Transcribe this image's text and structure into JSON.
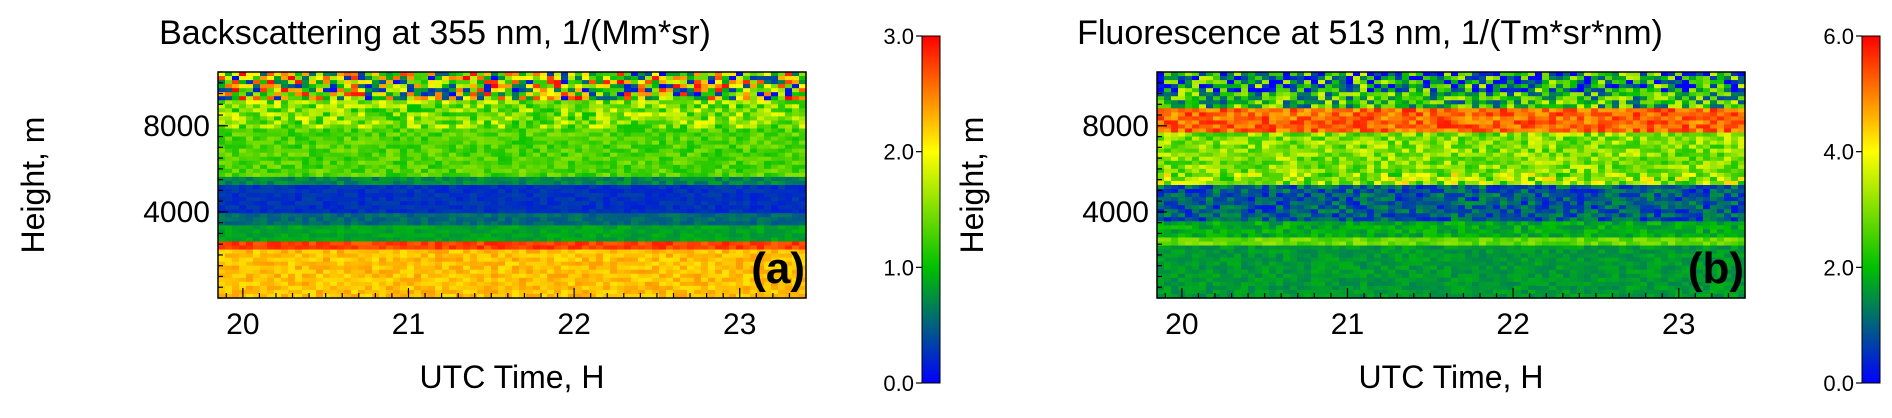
{
  "chart_data": [
    {
      "type": "heatmap",
      "title": "Backscattering at 355 nm, 1/(Mm*sr)",
      "xlabel": "UTC Time, H",
      "ylabel": "Height, m",
      "panel_label": "(a)",
      "xlim": [
        19.85,
        23.4
      ],
      "ylim": [
        0,
        10500
      ],
      "x_ticks": [
        "20",
        "21",
        "22",
        "23"
      ],
      "y_ticks": [
        "4000",
        "8000"
      ],
      "colorbar": {
        "range": [
          0.0,
          3.0
        ],
        "ticks": [
          "0.0",
          "1.0",
          "2.0",
          "3.0"
        ],
        "colormap": [
          "#0000ff",
          "#00c000",
          "#ffff00",
          "#ff0000"
        ]
      },
      "layers": [
        {
          "from_m": 0,
          "to_m": 2300,
          "value": 2.25,
          "noise": 0.15
        },
        {
          "from_m": 2300,
          "to_m": 2600,
          "value": 2.75,
          "noise": 0.15
        },
        {
          "from_m": 2600,
          "to_m": 3300,
          "value": 0.85,
          "noise": 0.1
        },
        {
          "from_m": 3300,
          "to_m": 4000,
          "value": 0.55,
          "noise": 0.12
        },
        {
          "from_m": 4000,
          "to_m": 5200,
          "value": 0.25,
          "noise": 0.1
        },
        {
          "from_m": 5200,
          "to_m": 5700,
          "value": 0.7,
          "noise": 0.15
        },
        {
          "from_m": 5700,
          "to_m": 7800,
          "value": 1.3,
          "noise": 0.25
        },
        {
          "from_m": 7800,
          "to_m": 9200,
          "value": 1.5,
          "noise": 0.5
        },
        {
          "from_m": 9200,
          "to_m": 10500,
          "value": 1.5,
          "noise": 1.5
        }
      ]
    },
    {
      "type": "heatmap",
      "title": "Fluorescence at 513 nm, 1/(Tm*sr*nm)",
      "xlabel": "UTC Time, H",
      "ylabel": "Height, m",
      "panel_label": "(b)",
      "xlim": [
        19.85,
        23.4
      ],
      "ylim": [
        0,
        10500
      ],
      "x_ticks": [
        "20",
        "21",
        "22",
        "23"
      ],
      "y_ticks": [
        "4000",
        "8000"
      ],
      "colorbar": {
        "range": [
          0.0,
          6.0
        ],
        "ticks": [
          "0.0",
          "2.0",
          "4.0",
          "6.0"
        ],
        "colormap": [
          "#0000ff",
          "#00c000",
          "#ffff00",
          "#ff0000"
        ]
      },
      "layers": [
        {
          "from_m": 0,
          "to_m": 2500,
          "value": 1.6,
          "noise": 0.25
        },
        {
          "from_m": 2500,
          "to_m": 2900,
          "value": 2.8,
          "noise": 0.4
        },
        {
          "from_m": 2900,
          "to_m": 3500,
          "value": 1.8,
          "noise": 0.4
        },
        {
          "from_m": 3500,
          "to_m": 5200,
          "value": 0.9,
          "noise": 0.7
        },
        {
          "from_m": 5200,
          "to_m": 5800,
          "value": 3.2,
          "noise": 1.2
        },
        {
          "from_m": 5800,
          "to_m": 7600,
          "value": 3.0,
          "noise": 0.8
        },
        {
          "from_m": 7600,
          "to_m": 8800,
          "value": 5.2,
          "noise": 0.6
        },
        {
          "from_m": 8800,
          "to_m": 9600,
          "value": 2.2,
          "noise": 1.5
        },
        {
          "from_m": 9600,
          "to_m": 10500,
          "value": 1.5,
          "noise": 2.2
        }
      ]
    }
  ]
}
